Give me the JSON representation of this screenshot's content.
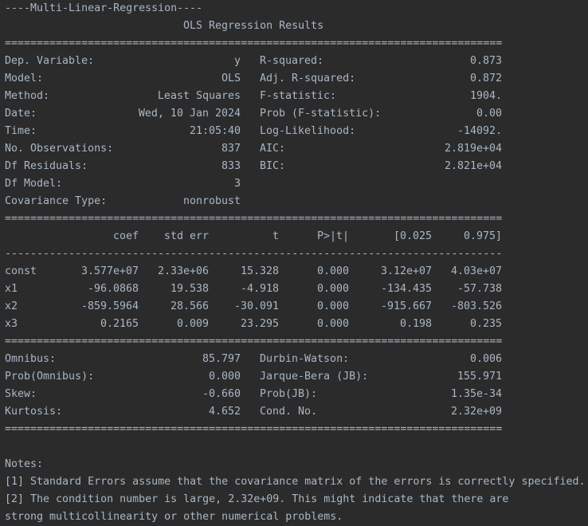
{
  "title": "----Multi-Linear-Regression----",
  "subtitle": "OLS Regression Results",
  "rule_double": "==============================================================================",
  "rule_single": "------------------------------------------------------------------------------",
  "model_info": [
    [
      "Dep. Variable:",
      "y",
      "R-squared:",
      "0.873"
    ],
    [
      "Model:",
      "OLS",
      "Adj. R-squared:",
      "0.872"
    ],
    [
      "Method:",
      "Least Squares",
      "F-statistic:",
      "1904."
    ],
    [
      "Date:",
      "Wed, 10 Jan 2024",
      "Prob (F-statistic):",
      "0.00"
    ],
    [
      "Time:",
      "21:05:40",
      "Log-Likelihood:",
      "-14092."
    ],
    [
      "No. Observations:",
      "837",
      "AIC:",
      "2.819e+04"
    ],
    [
      "Df Residuals:",
      "833",
      "BIC:",
      "2.821e+04"
    ],
    [
      "Df Model:",
      "3"
    ],
    [
      "Covariance Type:",
      "nonrobust"
    ]
  ],
  "coefficients": {
    "header": [
      "coef",
      "std err",
      "t",
      "P>|t|",
      "[0.025",
      "0.975]"
    ],
    "rows": [
      [
        "const",
        "3.577e+07",
        "2.33e+06",
        "15.328",
        "0.000",
        "3.12e+07",
        "4.03e+07"
      ],
      [
        "x1",
        "-96.0868",
        "19.538",
        "-4.918",
        "0.000",
        "-134.435",
        "-57.738"
      ],
      [
        "x2",
        "-859.5964",
        "28.566",
        "-30.091",
        "0.000",
        "-915.667",
        "-803.526"
      ],
      [
        "x3",
        "0.2165",
        "0.009",
        "23.295",
        "0.000",
        "0.198",
        "0.235"
      ]
    ]
  },
  "diagnostics": [
    [
      "Omnibus:",
      "85.797",
      "Durbin-Watson:",
      "0.006"
    ],
    [
      "Prob(Omnibus):",
      "0.000",
      "Jarque-Bera (JB):",
      "155.971"
    ],
    [
      "Skew:",
      "-0.660",
      "Prob(JB):",
      "1.35e-34"
    ],
    [
      "Kurtosis:",
      "4.652",
      "Cond. No.",
      "2.32e+09"
    ]
  ],
  "notes": {
    "heading": "Notes:",
    "lines": [
      "[1] Standard Errors assume that the covariance matrix of the errors is correctly specified.",
      "[2] The condition number is large, 2.32e+09. This might indicate that there are",
      "strong multicollinearity or other numerical problems."
    ]
  }
}
